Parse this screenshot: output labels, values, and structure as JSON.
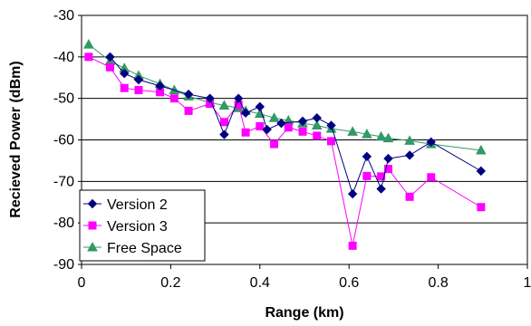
{
  "chart_data": {
    "type": "line",
    "title": "",
    "xlabel": "Range (km)",
    "ylabel": "Recieved Power (dBm)",
    "xlim": [
      0,
      1
    ],
    "ylim": [
      -90,
      -30
    ],
    "x_ticks": [
      "0",
      "0.2",
      "0.4",
      "0.6",
      "0.8",
      "1"
    ],
    "y_ticks": [
      "-30",
      "-40",
      "-50",
      "-60",
      "-70",
      "-80",
      "-90"
    ],
    "grid": "horizontal",
    "legend_position": "bottom-left",
    "series": [
      {
        "name": "Version 2",
        "color": "#000080",
        "marker": "diamond",
        "points": [
          [
            0.064,
            -40.0
          ],
          [
            0.096,
            -44.0
          ],
          [
            0.128,
            -45.5
          ],
          [
            0.176,
            -47.0
          ],
          [
            0.24,
            -49.0
          ],
          [
            0.288,
            -50.0
          ],
          [
            0.32,
            -58.7
          ],
          [
            0.352,
            -50.0
          ],
          [
            0.368,
            -53.5
          ],
          [
            0.4,
            -52.0
          ],
          [
            0.416,
            -57.5
          ],
          [
            0.448,
            -56.0
          ],
          [
            0.496,
            -55.5
          ],
          [
            0.528,
            -54.7
          ],
          [
            0.56,
            -56.5
          ],
          [
            0.608,
            -73.0
          ],
          [
            0.64,
            -64.0
          ],
          [
            0.672,
            -71.8
          ],
          [
            0.688,
            -64.5
          ],
          [
            0.736,
            -63.7
          ],
          [
            0.784,
            -60.5
          ],
          [
            0.896,
            -67.5
          ]
        ]
      },
      {
        "name": "Version 3",
        "color": "#ff00ff",
        "marker": "square",
        "points": [
          [
            0.016,
            -40.0
          ],
          [
            0.064,
            -42.5
          ],
          [
            0.096,
            -47.5
          ],
          [
            0.128,
            -48.0
          ],
          [
            0.176,
            -48.5
          ],
          [
            0.208,
            -50.0
          ],
          [
            0.24,
            -53.0
          ],
          [
            0.288,
            -51.3
          ],
          [
            0.32,
            -55.7
          ],
          [
            0.352,
            -51.5
          ],
          [
            0.368,
            -58.2
          ],
          [
            0.4,
            -56.7
          ],
          [
            0.432,
            -61.0
          ],
          [
            0.464,
            -57.0
          ],
          [
            0.496,
            -58.0
          ],
          [
            0.528,
            -59.0
          ],
          [
            0.56,
            -60.3
          ],
          [
            0.608,
            -85.5
          ],
          [
            0.64,
            -68.7
          ],
          [
            0.672,
            -68.8
          ],
          [
            0.688,
            -67.0
          ],
          [
            0.736,
            -73.7
          ],
          [
            0.784,
            -69.0
          ],
          [
            0.896,
            -76.2
          ]
        ]
      },
      {
        "name": "Free Space",
        "color": "#339966",
        "marker": "triangle",
        "points": [
          [
            0.016,
            -37.0
          ],
          [
            0.064,
            -41.0
          ],
          [
            0.096,
            -42.7
          ],
          [
            0.128,
            -44.5
          ],
          [
            0.176,
            -46.5
          ],
          [
            0.208,
            -48.0
          ],
          [
            0.24,
            -49.5
          ],
          [
            0.288,
            -51.0
          ],
          [
            0.32,
            -51.7
          ],
          [
            0.352,
            -52.3
          ],
          [
            0.368,
            -53.0
          ],
          [
            0.4,
            -53.7
          ],
          [
            0.432,
            -54.7
          ],
          [
            0.464,
            -55.3
          ],
          [
            0.496,
            -56.0
          ],
          [
            0.528,
            -56.5
          ],
          [
            0.56,
            -57.3
          ],
          [
            0.608,
            -58.0
          ],
          [
            0.64,
            -58.6
          ],
          [
            0.672,
            -59.2
          ],
          [
            0.688,
            -59.6
          ],
          [
            0.736,
            -60.2
          ],
          [
            0.784,
            -61.0
          ],
          [
            0.896,
            -62.5
          ]
        ]
      }
    ]
  }
}
